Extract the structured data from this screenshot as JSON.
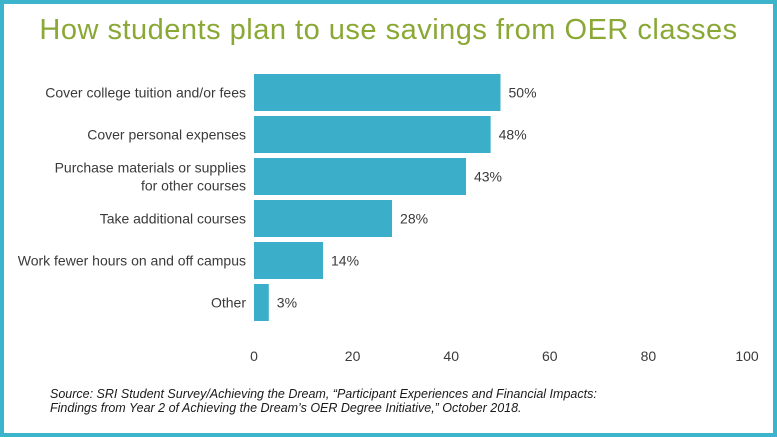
{
  "title": "How students plan to use savings from OER classes",
  "source": {
    "line1": "Source: SRI Student Survey/Achieving the Dream, “Participant Experiences and Financial Impacts:",
    "line2": "Findings from Year 2 of Achieving the Dream’s OER Degree Initiative,” October 2018."
  },
  "colors": {
    "bar": "#3bafc9",
    "border": "#3bb4cc",
    "title": "#8aa836"
  },
  "chart_data": {
    "type": "bar",
    "orientation": "horizontal",
    "title": "How students plan to use savings from OER classes",
    "categories": [
      [
        "Cover college tuition and/or fees"
      ],
      [
        "Cover personal expenses"
      ],
      [
        "Purchase materials or supplies",
        "for other courses"
      ],
      [
        "Take additional courses"
      ],
      [
        "Work fewer hours on and off campus"
      ],
      [
        "Other"
      ]
    ],
    "values": [
      50,
      48,
      43,
      28,
      14,
      3
    ],
    "value_labels": [
      "50%",
      "48%",
      "43%",
      "28%",
      "14%",
      "3%"
    ],
    "xlim": [
      0,
      100
    ],
    "xticks": [
      0,
      20,
      40,
      60,
      80,
      100
    ],
    "xtick_labels": [
      "0",
      "20",
      "40",
      "60",
      "80",
      "100"
    ],
    "grid": false
  }
}
